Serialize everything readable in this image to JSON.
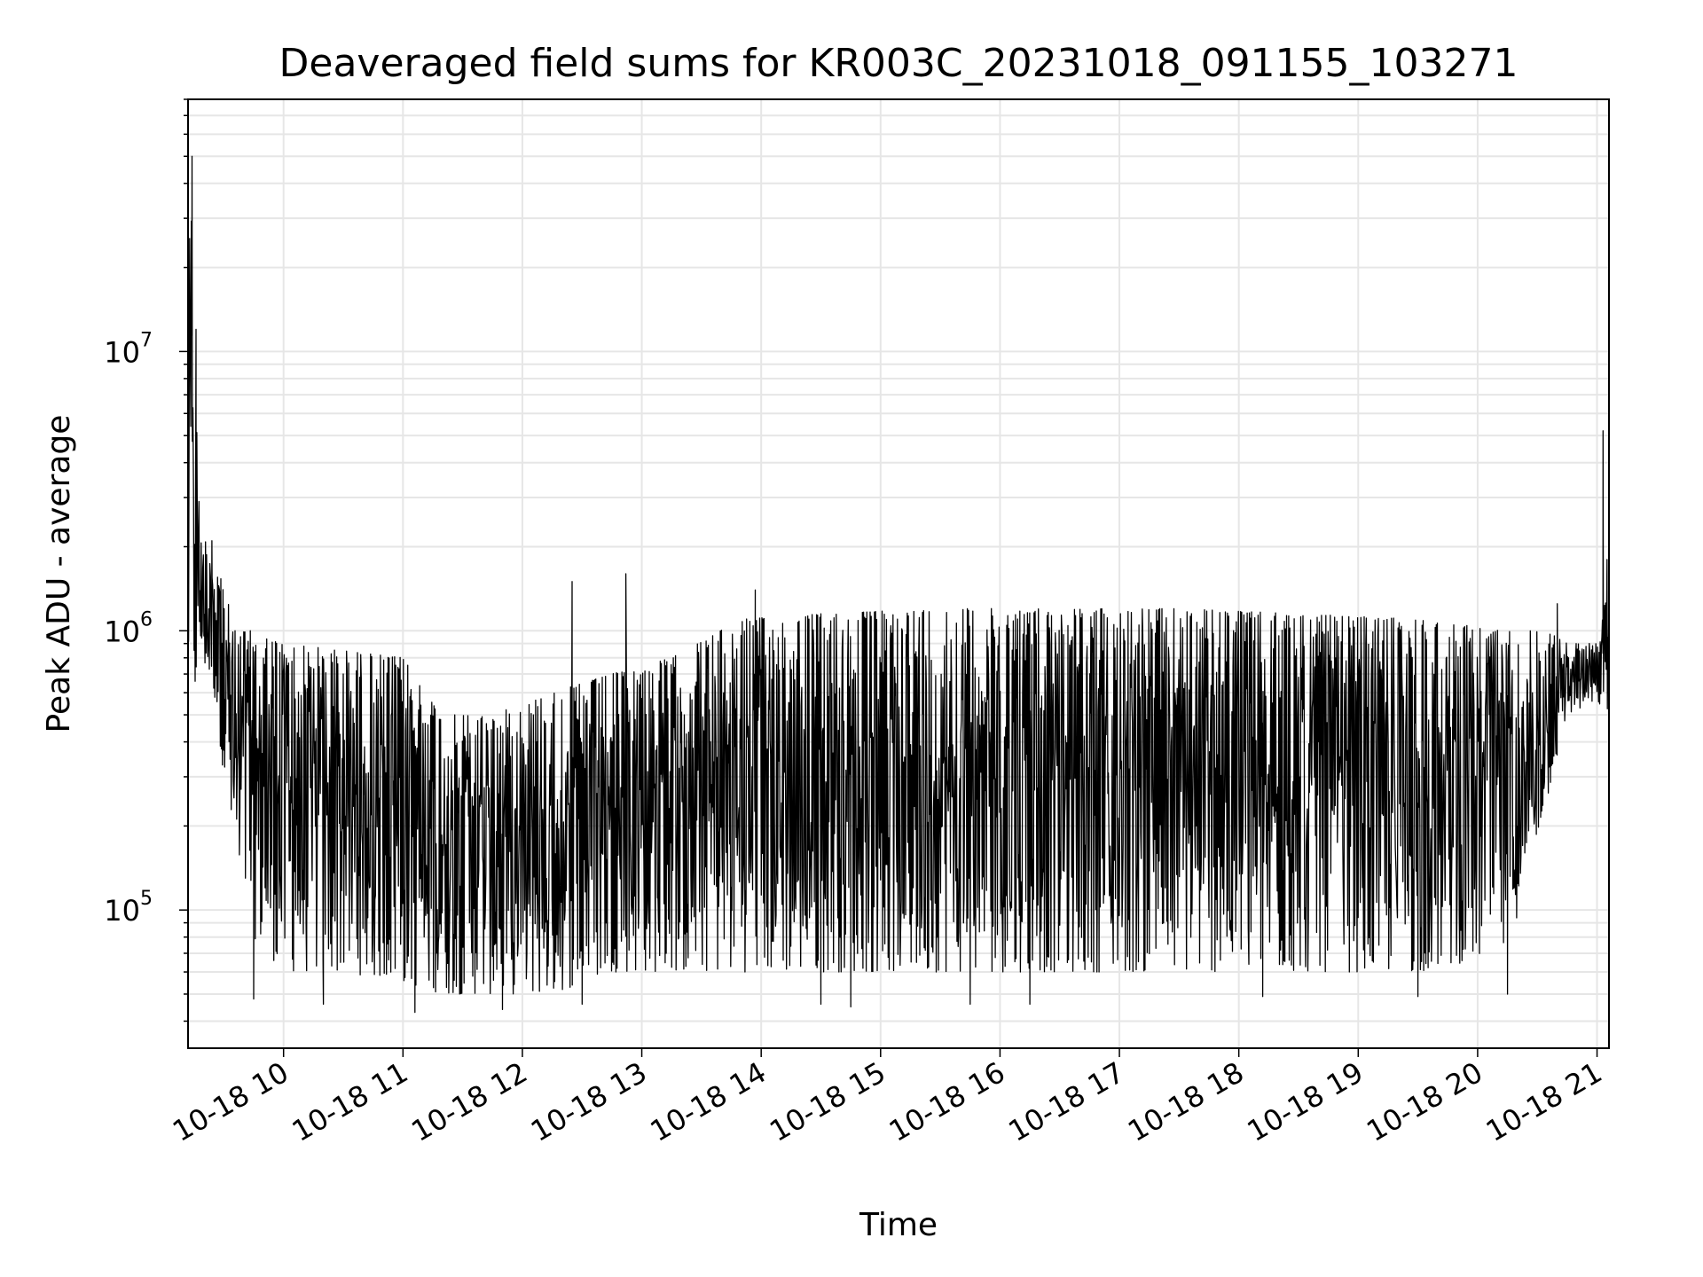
{
  "chart_data": {
    "type": "line",
    "title": "Deaveraged field sums for KR003C_20231018_091155_103271",
    "xlabel": "Time",
    "ylabel": "Peak ADU - average",
    "yscale": "log",
    "ylim": [
      32000,
      80000000
    ],
    "xlim": [
      "2023-10-18 09:12",
      "2023-10-18 21:06"
    ],
    "grid": true,
    "line_color": "#000000",
    "x_ticks": [
      {
        "label": "10-18 10",
        "time": "2023-10-18 10:00"
      },
      {
        "label": "10-18 11",
        "time": "2023-10-18 11:00"
      },
      {
        "label": "10-18 12",
        "time": "2023-10-18 12:00"
      },
      {
        "label": "10-18 13",
        "time": "2023-10-18 13:00"
      },
      {
        "label": "10-18 14",
        "time": "2023-10-18 14:00"
      },
      {
        "label": "10-18 15",
        "time": "2023-10-18 15:00"
      },
      {
        "label": "10-18 16",
        "time": "2023-10-18 16:00"
      },
      {
        "label": "10-18 17",
        "time": "2023-10-18 17:00"
      },
      {
        "label": "10-18 18",
        "time": "2023-10-18 18:00"
      },
      {
        "label": "10-18 19",
        "time": "2023-10-18 19:00"
      },
      {
        "label": "10-18 20",
        "time": "2023-10-18 20:00"
      },
      {
        "label": "10-18 21",
        "time": "2023-10-18 21:00"
      }
    ],
    "y_ticks": [
      {
        "base": "10",
        "exp": "5",
        "value": 100000
      },
      {
        "base": "10",
        "exp": "6",
        "value": 1000000
      },
      {
        "base": "10",
        "exp": "7",
        "value": 10000000
      }
    ],
    "envelope": [
      {
        "time": "2023-10-18 09:12",
        "low": 600000,
        "high": 3500000
      },
      {
        "time": "2023-10-18 09:13",
        "low": 800000,
        "high": 50000000
      },
      {
        "time": "2023-10-18 09:15",
        "low": 500000,
        "high": 12000000
      },
      {
        "time": "2023-10-18 09:18",
        "low": 800000,
        "high": 2200000
      },
      {
        "time": "2023-10-18 09:25",
        "low": 600000,
        "high": 2000000
      },
      {
        "time": "2023-10-18 09:30",
        "low": 300000,
        "high": 1500000
      },
      {
        "time": "2023-10-18 09:35",
        "low": 150000,
        "high": 1000000
      },
      {
        "time": "2023-10-18 09:45",
        "low": 80000,
        "high": 1000000
      },
      {
        "time": "2023-10-18 10:00",
        "low": 60000,
        "high": 900000
      },
      {
        "time": "2023-10-18 10:30",
        "low": 60000,
        "high": 850000
      },
      {
        "time": "2023-10-18 11:00",
        "low": 55000,
        "high": 800000
      },
      {
        "time": "2023-10-18 11:20",
        "low": 50000,
        "high": 500000
      },
      {
        "time": "2023-10-18 11:45",
        "low": 50000,
        "high": 500000
      },
      {
        "time": "2023-10-18 12:15",
        "low": 50000,
        "high": 600000
      },
      {
        "time": "2023-10-18 12:45",
        "low": 60000,
        "high": 700000
      },
      {
        "time": "2023-10-18 13:15",
        "low": 60000,
        "high": 800000
      },
      {
        "time": "2023-10-18 13:50",
        "low": 60000,
        "high": 1100000
      },
      {
        "time": "2023-10-18 14:30",
        "low": 60000,
        "high": 1150000
      },
      {
        "time": "2023-10-18 15:30",
        "low": 60000,
        "high": 1200000
      },
      {
        "time": "2023-10-18 16:30",
        "low": 60000,
        "high": 1200000
      },
      {
        "time": "2023-10-18 17:30",
        "low": 60000,
        "high": 1200000
      },
      {
        "time": "2023-10-18 18:30",
        "low": 60000,
        "high": 1150000
      },
      {
        "time": "2023-10-18 19:30",
        "low": 60000,
        "high": 1100000
      },
      {
        "time": "2023-10-18 20:15",
        "low": 70000,
        "high": 1000000
      },
      {
        "time": "2023-10-18 20:35",
        "low": 250000,
        "high": 1000000
      },
      {
        "time": "2023-10-18 20:45",
        "low": 500000,
        "high": 900000
      },
      {
        "time": "2023-10-18 21:00",
        "low": 550000,
        "high": 900000
      },
      {
        "time": "2023-10-18 21:06",
        "low": 500000,
        "high": 1500000
      }
    ],
    "peaks": [
      {
        "time": "2023-10-18 09:14",
        "value": 50000000
      },
      {
        "time": "2023-10-18 09:16",
        "value": 12000000
      },
      {
        "time": "2023-10-18 09:24",
        "value": 2100000
      },
      {
        "time": "2023-10-18 12:25",
        "value": 1500000
      },
      {
        "time": "2023-10-18 12:52",
        "value": 1600000
      },
      {
        "time": "2023-10-18 13:57",
        "value": 1400000
      },
      {
        "time": "2023-10-18 20:40",
        "value": 1250000
      },
      {
        "time": "2023-10-18 21:03",
        "value": 5200000
      },
      {
        "time": "2023-10-18 21:05",
        "value": 1800000
      }
    ],
    "troughs": [
      {
        "time": "2023-10-18 09:45",
        "value": 48000
      },
      {
        "time": "2023-10-18 10:20",
        "value": 46000
      },
      {
        "time": "2023-10-18 11:06",
        "value": 43000
      },
      {
        "time": "2023-10-18 11:50",
        "value": 44000
      },
      {
        "time": "2023-10-18 12:30",
        "value": 46000
      },
      {
        "time": "2023-10-18 14:30",
        "value": 46000
      },
      {
        "time": "2023-10-18 14:45",
        "value": 45000
      },
      {
        "time": "2023-10-18 15:45",
        "value": 46000
      },
      {
        "time": "2023-10-18 16:15",
        "value": 46000
      },
      {
        "time": "2023-10-18 18:12",
        "value": 49000
      },
      {
        "time": "2023-10-18 19:30",
        "value": 49000
      },
      {
        "time": "2023-10-18 20:15",
        "value": 50000
      }
    ]
  }
}
